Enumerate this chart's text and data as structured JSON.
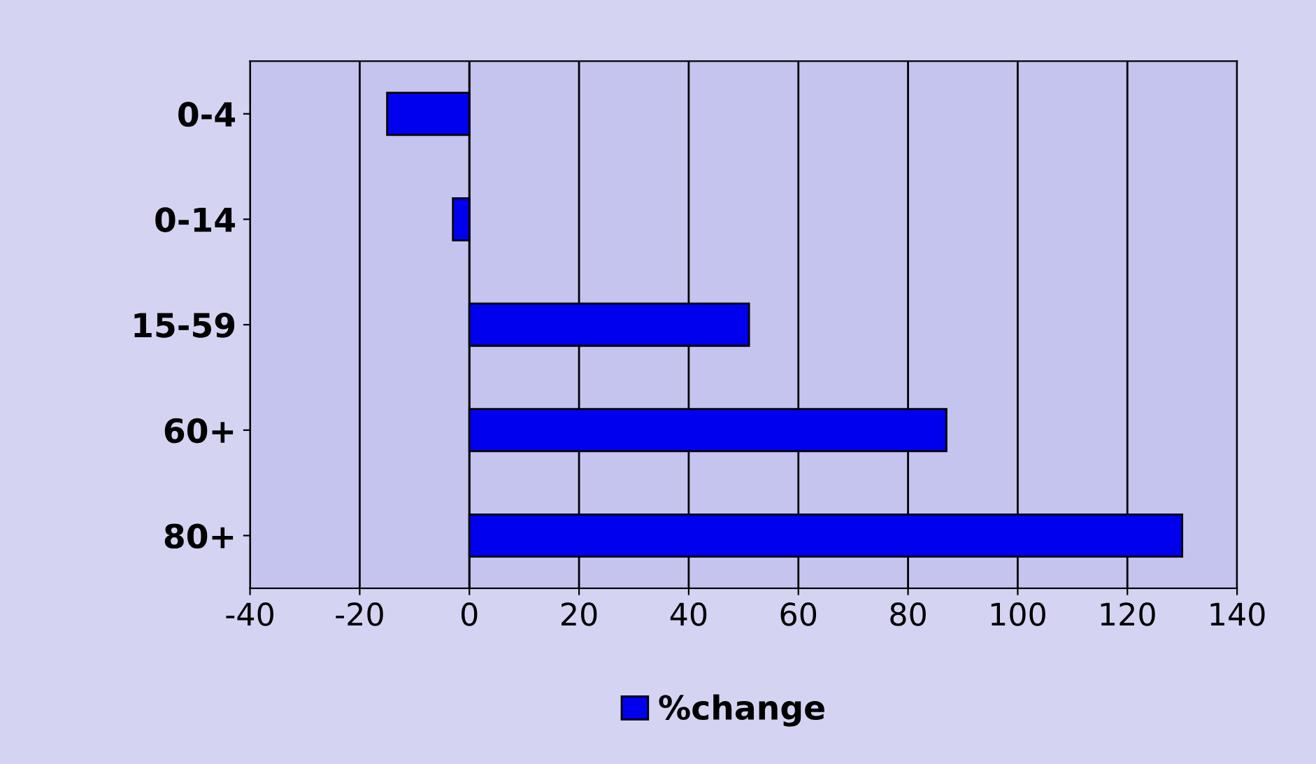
{
  "chart_data": {
    "type": "bar",
    "orientation": "horizontal",
    "categories": [
      "0-4",
      "0-14",
      "15-59",
      "60+",
      "80+"
    ],
    "series": [
      {
        "name": "%change",
        "color": "#0000ee",
        "values": [
          -15,
          -3,
          51,
          87,
          130
        ]
      }
    ],
    "xlim": [
      -40,
      140
    ],
    "xticks": [
      -40,
      -20,
      0,
      20,
      40,
      60,
      80,
      100,
      120,
      140
    ],
    "grid": "x",
    "legend": "bottom"
  }
}
